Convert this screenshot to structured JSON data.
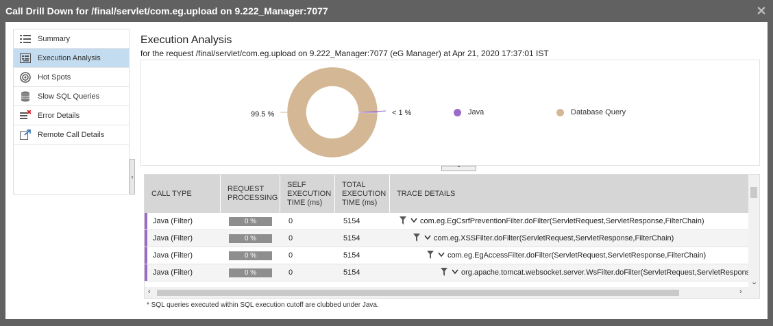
{
  "window": {
    "title": "Call Drill Down for /final/servlet/com.eg.upload on 9.222_Manager:7077",
    "close_glyph": "✕"
  },
  "sidebar": {
    "items": [
      {
        "label": "Summary",
        "icon": "list-icon",
        "active": false
      },
      {
        "label": "Execution Analysis",
        "icon": "tree-list-icon",
        "active": true
      },
      {
        "label": "Hot Spots",
        "icon": "target-icon",
        "active": false
      },
      {
        "label": "Slow SQL Queries",
        "icon": "database-icon",
        "active": false
      },
      {
        "label": "Error Details",
        "icon": "error-list-icon",
        "active": false
      },
      {
        "label": "Remote Call Details",
        "icon": "external-link-icon",
        "active": false
      }
    ],
    "collapse_glyph": "‹"
  },
  "main": {
    "title": "Execution Analysis",
    "subtitle": "for the request /final/servlet/com.eg.upload on 9.222_Manager:7077 (eG Manager) at Apr 21, 2020 17:37:01 IST"
  },
  "chart_data": {
    "type": "pie",
    "donut": true,
    "categories": [
      "Java",
      "Database Query"
    ],
    "values": [
      0.5,
      99.5
    ],
    "colors": [
      "#9b6bc7",
      "#d4b896"
    ],
    "slice_labels": [
      "< 1 %",
      "99.5 %"
    ],
    "legend": [
      "Java",
      "Database Query"
    ],
    "legend_placement": "right"
  },
  "table": {
    "headers": [
      "CALL TYPE",
      "REQUEST PROCESSING",
      "SELF EXECUTION TIME (ms)",
      "TOTAL EXECUTION TIME (ms)",
      "TRACE DETAILS"
    ],
    "rows": [
      {
        "call_type": "Java (Filter)",
        "processing": "0 %",
        "self": "0",
        "total": "5154",
        "trace": "com.eg.EgCsrfPreventionFilter.doFilter(ServletRequest,ServletResponse,FilterChain)",
        "indent": 0
      },
      {
        "call_type": "Java (Filter)",
        "processing": "0 %",
        "self": "0",
        "total": "5154",
        "trace": "com.eg.XSSFilter.doFilter(ServletRequest,ServletResponse,FilterChain)",
        "indent": 1
      },
      {
        "call_type": "Java (Filter)",
        "processing": "0 %",
        "self": "0",
        "total": "5154",
        "trace": "com.eg.EgAccessFilter.doFilter(ServletRequest,ServletResponse,FilterChain)",
        "indent": 2
      },
      {
        "call_type": "Java (Filter)",
        "processing": "0 %",
        "self": "0",
        "total": "5154",
        "trace": "org.apache.tomcat.websocket.server.WsFilter.doFilter(ServletRequest,ServletResponse,FilterChain)",
        "indent": 3
      }
    ]
  },
  "footnote": "* SQL queries executed within SQL execution cutoff are clubbed under Java."
}
